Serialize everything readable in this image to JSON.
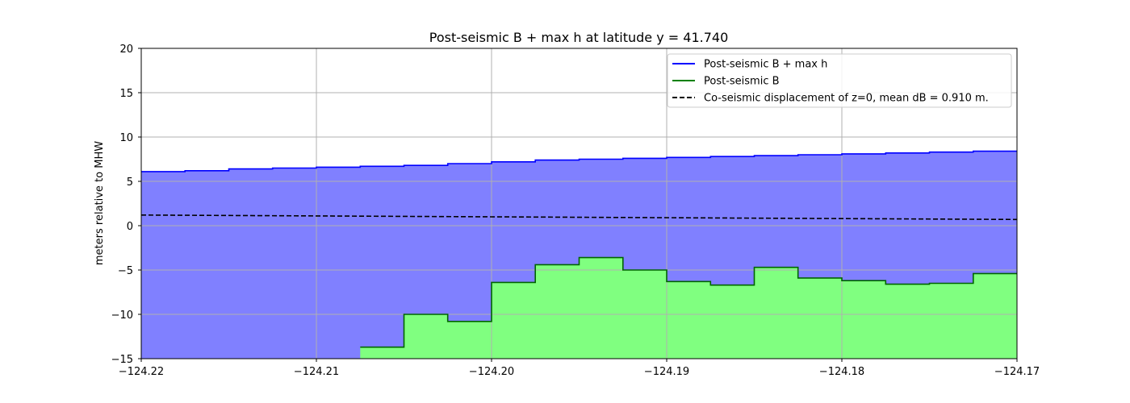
{
  "chart_data": {
    "type": "area",
    "title": "Post-seismic B + max h at latitude y = 41.740",
    "xlabel": "",
    "ylabel": "meters relative to MHW",
    "xlim": [
      -124.22,
      -124.17
    ],
    "ylim": [
      -15,
      20
    ],
    "grid": true,
    "legend_position": "top-right",
    "x_ticks": [
      -124.22,
      -124.21,
      -124.2,
      -124.19,
      -124.18,
      -124.17
    ],
    "x_tick_labels": [
      "−124.22",
      "−124.21",
      "−124.20",
      "−124.19",
      "−124.18",
      "−124.17"
    ],
    "y_ticks": [
      -15,
      -10,
      -5,
      0,
      5,
      10,
      15,
      20
    ],
    "y_tick_labels": [
      "−15",
      "−10",
      "−5",
      "0",
      "5",
      "10",
      "15",
      "20"
    ],
    "series": [
      {
        "name": "Post-seismic B + max h",
        "style": "step",
        "color": "#0000ff",
        "fill_color": "#8080ff",
        "x": [
          -124.22,
          -124.2175,
          -124.215,
          -124.2125,
          -124.21,
          -124.2075,
          -124.205,
          -124.2025,
          -124.2,
          -124.1975,
          -124.195,
          -124.1925,
          -124.19,
          -124.1875,
          -124.185,
          -124.1825,
          -124.18,
          -124.1775,
          -124.175,
          -124.1725,
          -124.17
        ],
        "values": [
          6.1,
          6.2,
          6.4,
          6.5,
          6.6,
          6.7,
          6.8,
          7.0,
          7.2,
          7.4,
          7.5,
          7.6,
          7.7,
          7.8,
          7.9,
          8.0,
          8.1,
          8.2,
          8.3,
          8.4,
          8.4
        ]
      },
      {
        "name": "Post-seismic B",
        "style": "step",
        "color": "#006400",
        "fill_color": "#80ff80",
        "x": [
          -124.2075,
          -124.205,
          -124.2025,
          -124.2,
          -124.1975,
          -124.195,
          -124.1925,
          -124.19,
          -124.1875,
          -124.185,
          -124.1825,
          -124.18,
          -124.1775,
          -124.175,
          -124.1725,
          -124.17
        ],
        "values": [
          -13.7,
          -10.0,
          -10.8,
          -6.4,
          -4.4,
          -3.6,
          -5.0,
          -6.3,
          -6.7,
          -4.7,
          -5.9,
          -6.2,
          -6.6,
          -6.5,
          -5.4,
          -5.4
        ]
      },
      {
        "name": "Co-seismic displacement of z=0, mean dB = 0.910 m.",
        "style": "dashed",
        "color": "#000000",
        "x": [
          -124.22,
          -124.17
        ],
        "values": [
          1.2,
          0.7
        ]
      }
    ]
  }
}
